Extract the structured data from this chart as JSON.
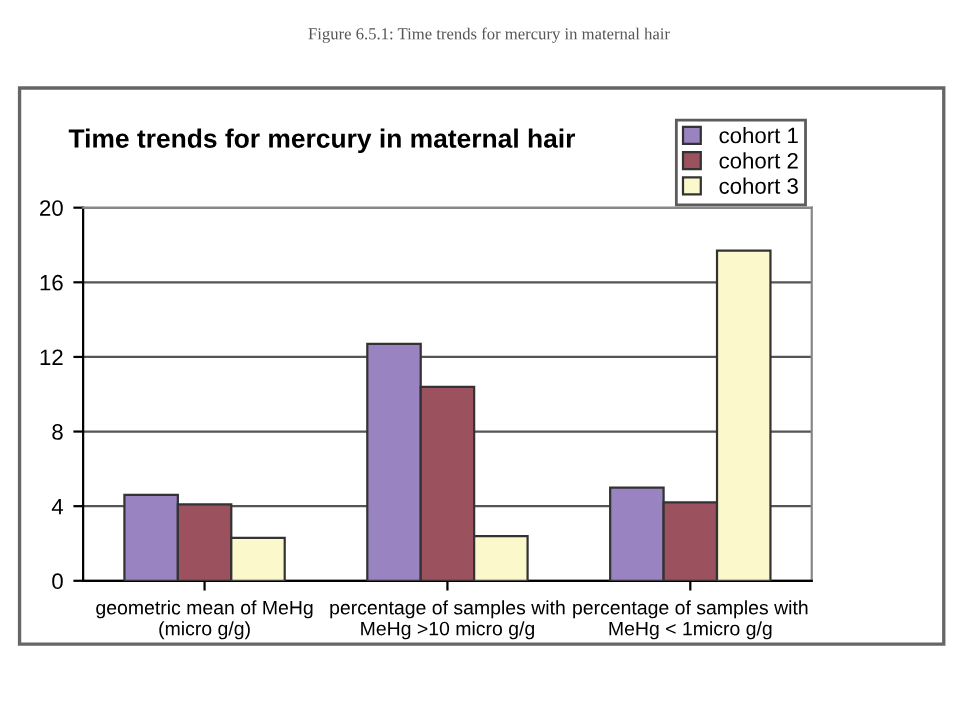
{
  "chart_data": {
    "type": "bar",
    "title": "Time trends for mercury in maternal hair",
    "annotations": [
      "Figure 6.5.1: Time trends for mercury in maternal hair"
    ],
    "categories": [
      "geometric mean of MeHg\n(micro g/g)",
      "percentage of samples with\nMeHg >10 micro g/g",
      "percentage of samples with\nMeHg < 1micro g/g"
    ],
    "series": [
      {
        "name": "cohort 1",
        "color": "#9983c0",
        "values": [
          4.6,
          12.7,
          5.0
        ]
      },
      {
        "name": "cohort 2",
        "color": "#9c515e",
        "values": [
          4.1,
          10.4,
          4.2
        ]
      },
      {
        "name": "cohort 3",
        "color": "#fbf8cc",
        "values": [
          2.3,
          2.4,
          17.7
        ]
      }
    ],
    "ylim": [
      0,
      20
    ],
    "yticks": [
      0,
      4,
      8,
      12,
      16,
      20
    ],
    "grid": "y",
    "legend": "top right"
  }
}
